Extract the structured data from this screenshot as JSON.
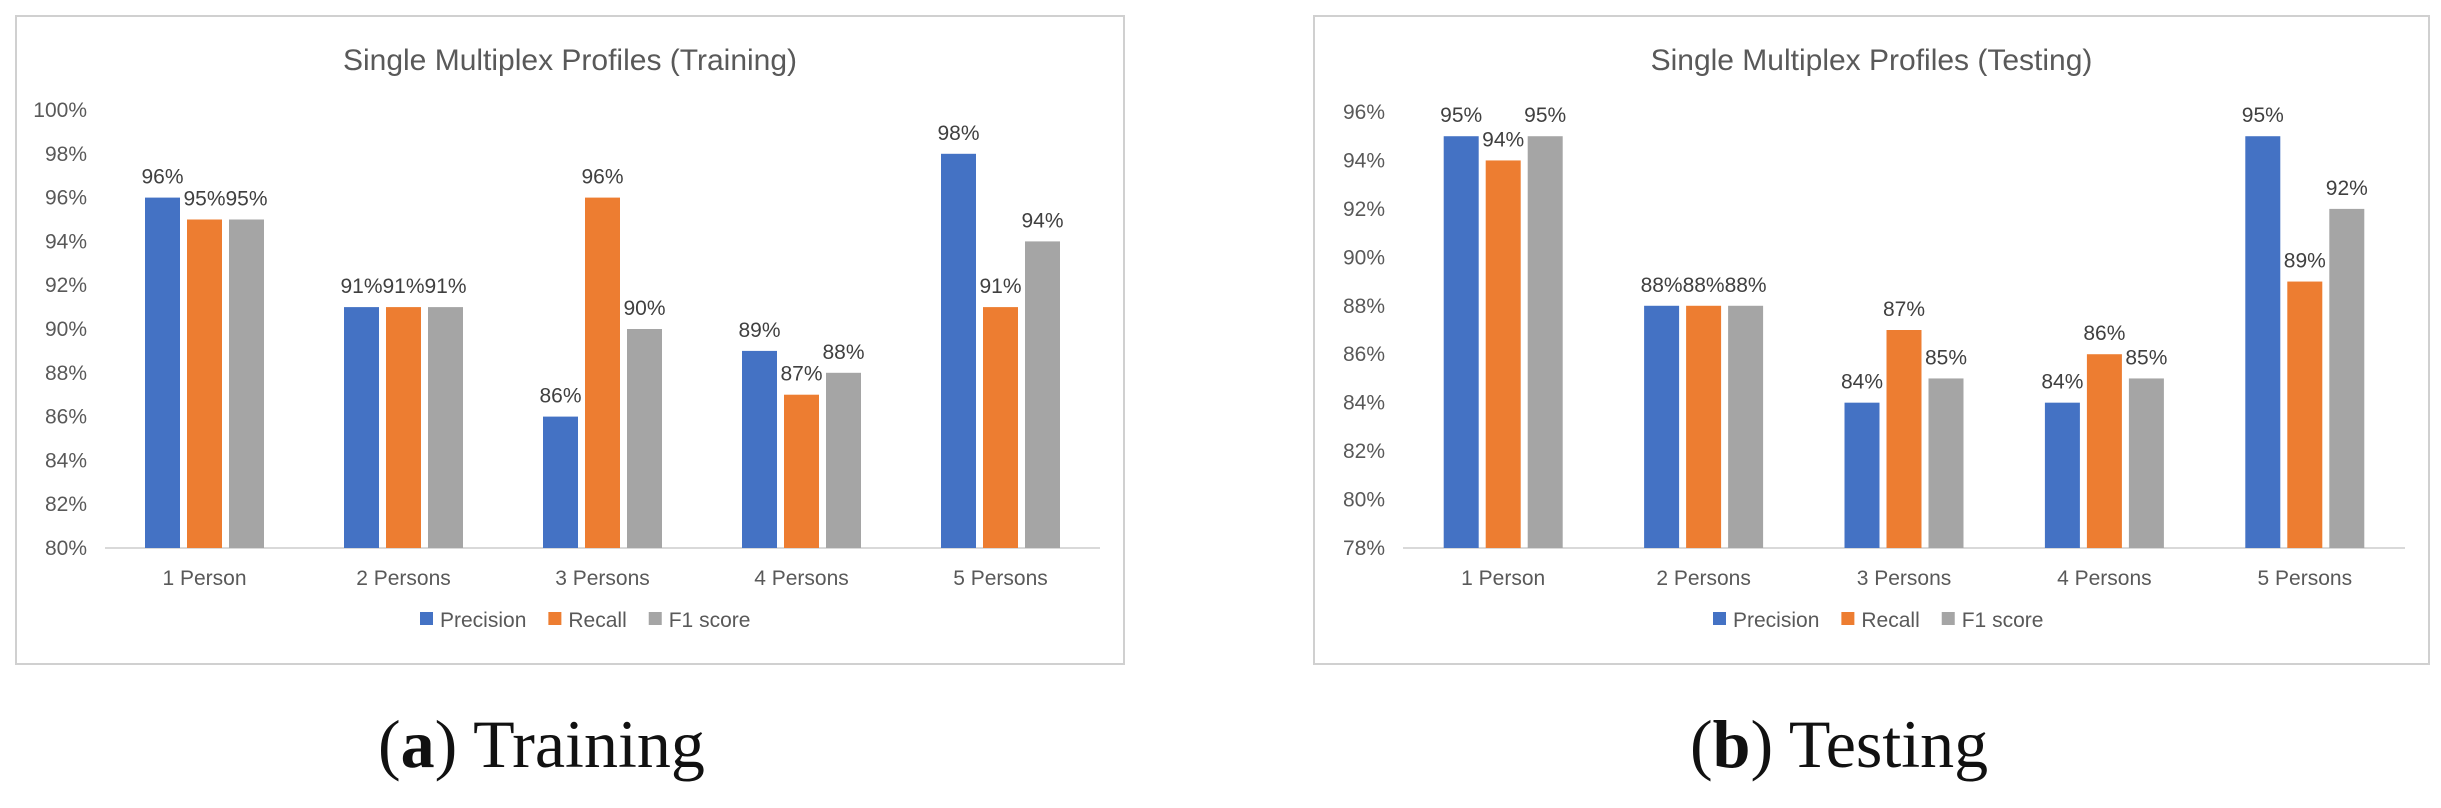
{
  "colors": {
    "precision": "#4472C4",
    "recall": "#ED7D31",
    "f1": "#A5A5A5",
    "axis": "#d9d9d9"
  },
  "chart_data": [
    {
      "type": "bar",
      "title": "Single Multiplex Profiles (Training)",
      "categories": [
        "1 Person",
        "2 Persons",
        "3 Persons",
        "4 Persons",
        "5 Persons"
      ],
      "series": [
        {
          "name": "Precision",
          "values": [
            96,
            91,
            86,
            89,
            98
          ]
        },
        {
          "name": "Recall",
          "values": [
            95,
            91,
            96,
            87,
            91
          ]
        },
        {
          "name": "F1 score",
          "values": [
            95,
            91,
            90,
            88,
            94
          ]
        }
      ],
      "ylim": [
        80,
        100
      ],
      "ytick_step": 2,
      "value_suffix": "%",
      "grid": false,
      "legend": "bottom"
    },
    {
      "type": "bar",
      "title": "Single Multiplex Profiles (Testing)",
      "categories": [
        "1 Person",
        "2 Persons",
        "3 Persons",
        "4 Persons",
        "5 Persons"
      ],
      "series": [
        {
          "name": "Precision",
          "values": [
            95,
            88,
            84,
            84,
            95
          ]
        },
        {
          "name": "Recall",
          "values": [
            94,
            88,
            87,
            86,
            89
          ]
        },
        {
          "name": "F1 score",
          "values": [
            95,
            88,
            85,
            85,
            92
          ]
        }
      ],
      "ylim": [
        78,
        96
      ],
      "ytick_step": 2,
      "value_suffix": "%",
      "grid": false,
      "legend": "bottom"
    }
  ],
  "captions": [
    {
      "letter": "a",
      "open": "(",
      "close": ")",
      "text": " Training"
    },
    {
      "letter": "b",
      "open": "(",
      "close": ")",
      "text": " Testing"
    }
  ]
}
